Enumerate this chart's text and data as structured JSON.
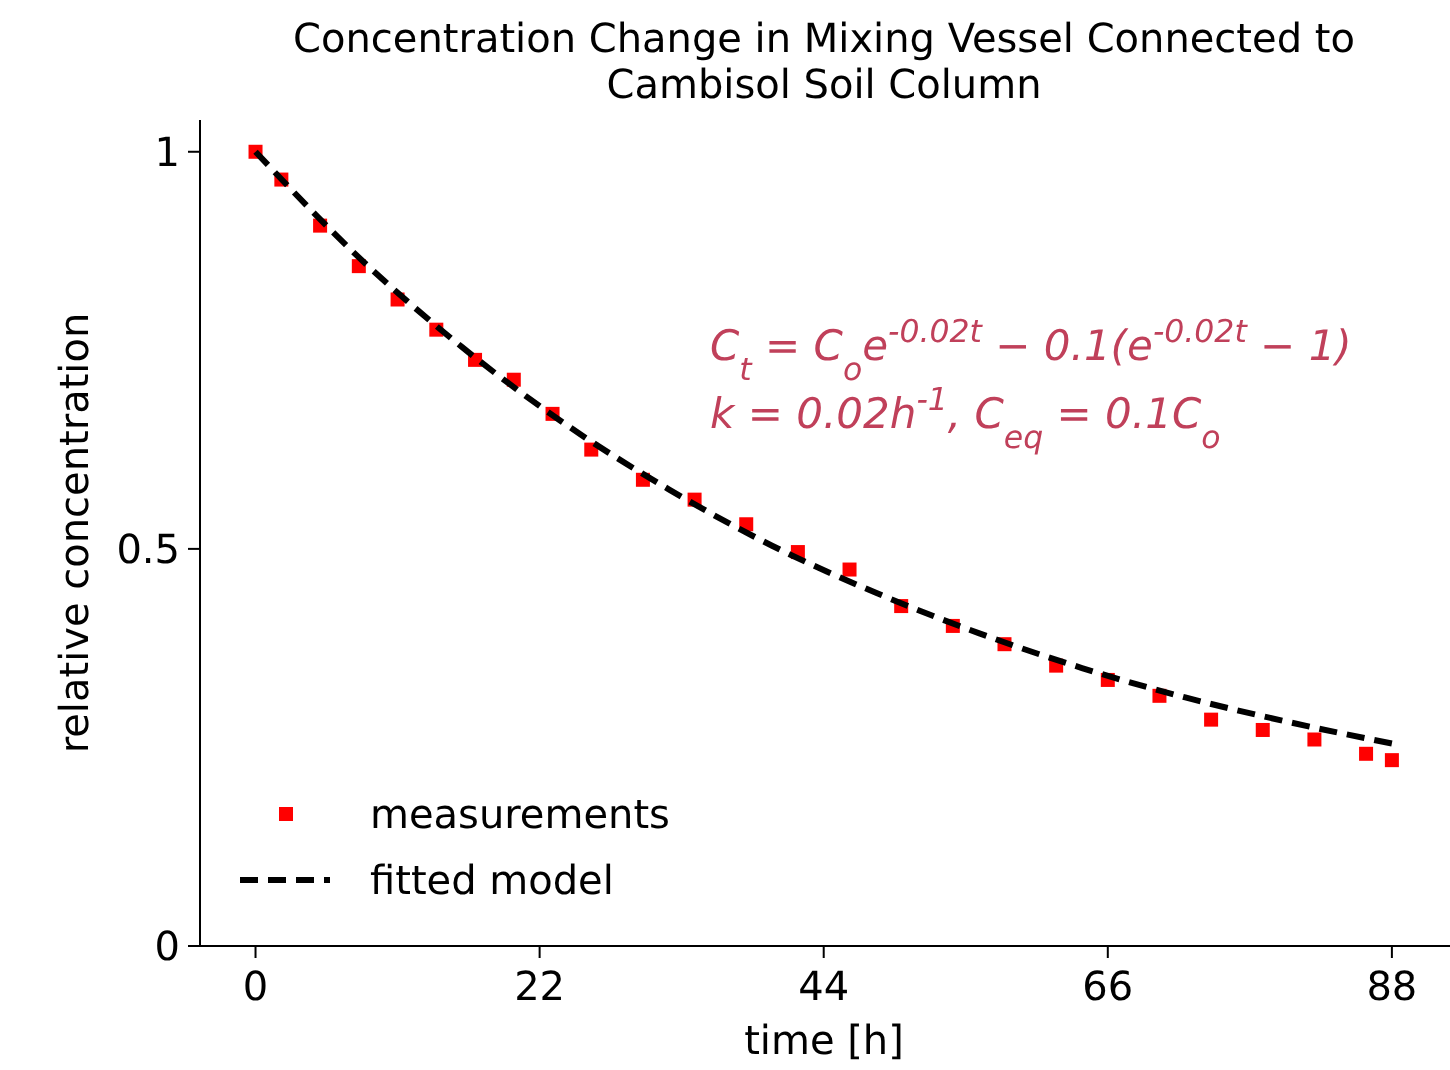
{
  "chart_data": {
    "type": "scatter",
    "title": "Concentration Change in Mixing Vessel Connected to Cambisol Soil Column",
    "xlabel": "time [h]",
    "ylabel": "relative concentration",
    "xlim": [
      -4.3,
      92.5
    ],
    "ylim": [
      0,
      1.04
    ],
    "xticks": [
      0,
      22,
      44,
      66,
      88
    ],
    "yticks": [
      0,
      0.5,
      1
    ],
    "grid": false,
    "legend": "bottom left",
    "annotations": [
      "C$_{t}$ = C$_{o}$e$^{-0.02t}$ − 0.1(e$^{-0.02t}$ − 1)",
      "k = 0.02h$^{-1}$, C$_{eq}$ = 0.1C$_{o}$"
    ],
    "series": [
      {
        "name": "measurements",
        "type": "scatter",
        "marker": "square",
        "color": "#ff0000",
        "x": [
          0,
          2,
          5,
          8,
          11,
          14,
          17,
          20,
          23,
          26,
          30,
          34,
          38,
          42,
          46,
          50,
          54,
          58,
          62,
          66,
          70,
          74,
          78,
          82,
          86,
          88
        ],
        "values": [
          1.0,
          0.965,
          0.907,
          0.856,
          0.814,
          0.776,
          0.738,
          0.713,
          0.67,
          0.625,
          0.587,
          0.562,
          0.531,
          0.496,
          0.474,
          0.428,
          0.403,
          0.38,
          0.353,
          0.335,
          0.315,
          0.285,
          0.272,
          0.26,
          0.242,
          0.234
        ]
      },
      {
        "name": "fitted model",
        "type": "line",
        "line_style": "dashed",
        "marker": "none",
        "color": "#000000",
        "x": [
          0,
          8,
          16,
          24,
          32,
          40,
          48,
          56,
          64,
          72,
          80,
          88
        ],
        "values": [
          1.0,
          0.867,
          0.754,
          0.657,
          0.575,
          0.504,
          0.445,
          0.394,
          0.35,
          0.313,
          0.282,
          0.255
        ]
      }
    ]
  }
}
